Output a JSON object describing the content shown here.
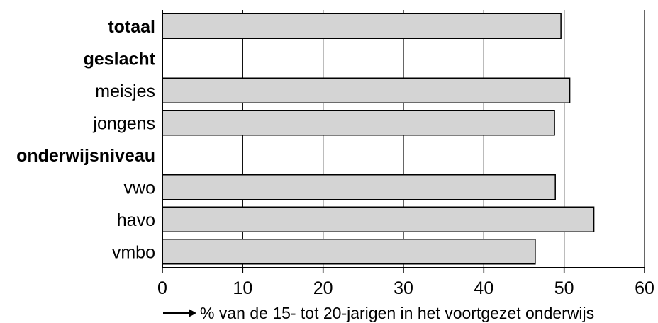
{
  "chart_data": {
    "type": "bar",
    "orientation": "horizontal",
    "categories": [
      "totaal",
      "geslacht",
      "meisjes",
      "jongens",
      "onderwijsniveau",
      "vwo",
      "havo",
      "vmbo"
    ],
    "category_styles": [
      "bold",
      "bold",
      "normal",
      "normal",
      "bold",
      "normal",
      "normal",
      "normal"
    ],
    "values": [
      49.6,
      null,
      50.7,
      48.8,
      null,
      48.9,
      53.7,
      46.4
    ],
    "xlim": [
      0,
      60
    ],
    "xticks": [
      0,
      10,
      20,
      30,
      40,
      50,
      60
    ],
    "xlabel": "% van de 15- tot 20-jarigen in het voortgezet onderwijs",
    "xlabel_arrow": "→",
    "grid": true,
    "bar_color": "#d4d4d4",
    "edge_color": "#000000"
  }
}
